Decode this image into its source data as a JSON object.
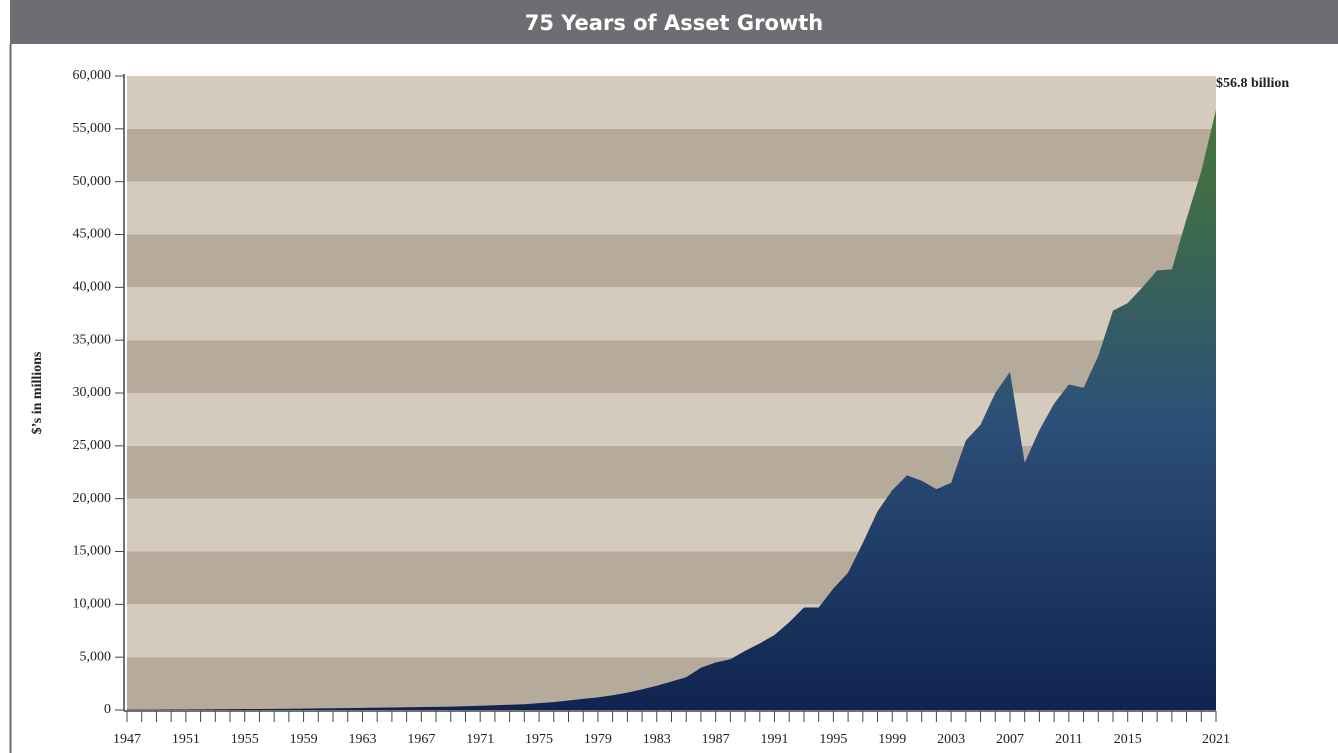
{
  "chart_data": {
    "type": "area",
    "title": "75 Years of Asset Growth",
    "y_label": "$’s in millions",
    "annotation": "$56.8 billion",
    "x": [
      1947,
      1948,
      1949,
      1950,
      1951,
      1952,
      1953,
      1954,
      1955,
      1956,
      1957,
      1958,
      1959,
      1960,
      1961,
      1962,
      1963,
      1964,
      1965,
      1966,
      1967,
      1968,
      1969,
      1970,
      1971,
      1972,
      1973,
      1974,
      1975,
      1976,
      1977,
      1978,
      1979,
      1980,
      1981,
      1982,
      1983,
      1984,
      1985,
      1986,
      1987,
      1988,
      1989,
      1990,
      1991,
      1992,
      1993,
      1994,
      1995,
      1996,
      1997,
      1998,
      1999,
      2000,
      2001,
      2002,
      2003,
      2004,
      2005,
      2006,
      2007,
      2008,
      2009,
      2010,
      2011,
      2012,
      2013,
      2014,
      2015,
      2016,
      2017,
      2018,
      2019,
      2020,
      2021
    ],
    "values": [
      30,
      35,
      40,
      45,
      50,
      60,
      70,
      80,
      90,
      100,
      110,
      120,
      135,
      150,
      165,
      180,
      200,
      220,
      240,
      260,
      280,
      300,
      320,
      350,
      400,
      450,
      500,
      550,
      650,
      750,
      900,
      1050,
      1200,
      1400,
      1650,
      1950,
      2300,
      2700,
      3100,
      4000,
      4500,
      4800,
      5600,
      6300,
      7100,
      8300,
      9700,
      9700,
      11500,
      13000,
      15800,
      18800,
      20800,
      22200,
      21700,
      20900,
      21500,
      25500,
      27000,
      30000,
      32000,
      23400,
      26500,
      29000,
      30800,
      30500,
      33500,
      37800,
      38500,
      40000,
      41600,
      41700,
      46500,
      51000,
      56800
    ],
    "xlim": [
      1947,
      2021
    ],
    "xticks": [
      1947,
      1951,
      1955,
      1959,
      1963,
      1967,
      1971,
      1975,
      1979,
      1983,
      1987,
      1991,
      1995,
      1999,
      2003,
      2007,
      2011,
      2015,
      2021
    ],
    "ylim": [
      0,
      60000
    ],
    "yticks": [
      0,
      {
        "value": 5000,
        "label": "5,000"
      },
      {
        "value": 10000,
        "label": "10,000"
      },
      {
        "value": 15000,
        "label": "15,000"
      },
      {
        "value": 20000,
        "label": "20,000"
      },
      {
        "value": 25000,
        "label": "25,000"
      },
      {
        "value": 30000,
        "label": "30,000"
      },
      {
        "value": 35000,
        "label": "35,000"
      },
      {
        "value": 40000,
        "label": "40,000"
      },
      {
        "value": 45000,
        "label": "45,000"
      },
      {
        "value": 50000,
        "label": "50,000"
      },
      {
        "value": 55000,
        "label": "55,000"
      },
      {
        "value": 60000,
        "label": "60,000"
      }
    ],
    "band_colors": [
      "#b6aa9a",
      "#d4cabe"
    ],
    "gradient_colors": [
      "#10244f",
      "#2c4f78",
      "#4a7c31"
    ]
  }
}
